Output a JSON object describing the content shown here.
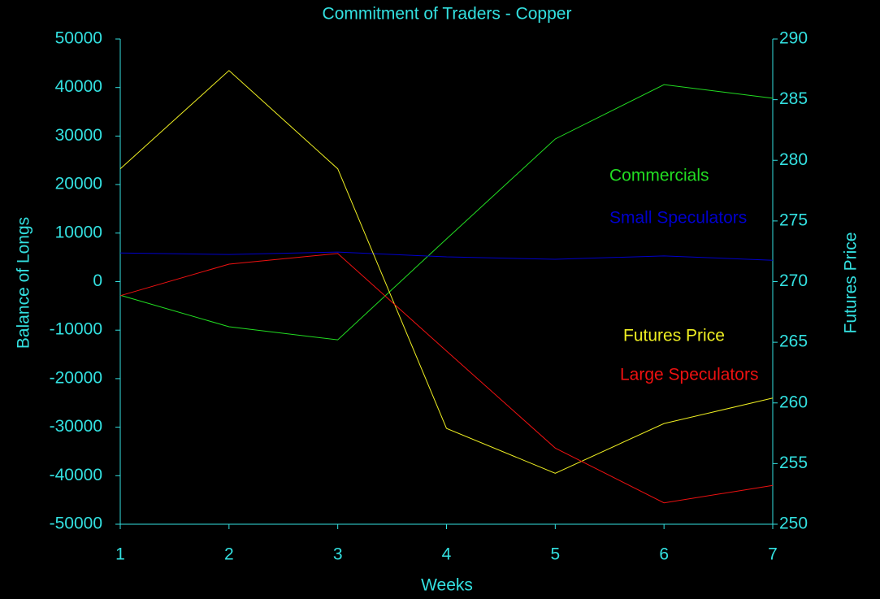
{
  "chart_data": {
    "type": "line",
    "title": "Commitment of Traders - Copper",
    "x_label": "Weeks",
    "y_label": "Balance of Longs",
    "y2_label": "Futures Price",
    "x": [
      1,
      2,
      3,
      4,
      5,
      6,
      7
    ],
    "series": [
      {
        "name": "Commercials",
        "color": "#22dd22",
        "values": [
          -2800,
          -9300,
          -12000,
          8800,
          29400,
          40600,
          37800
        ]
      },
      {
        "name": "Small Speculators",
        "color": "#0000cc",
        "values": [
          5900,
          5600,
          6100,
          5100,
          4600,
          5300,
          4400
        ]
      },
      {
        "name": "Futures Price",
        "color": "#eeee22",
        "axis": "y2",
        "values": [
          279.3,
          287.4,
          279.3,
          257.9,
          254.2,
          258.3,
          260.4
        ]
      },
      {
        "name": "Large Speculators",
        "color": "#ee1111",
        "values": [
          -2900,
          3600,
          5800,
          -14300,
          -34300,
          -45600,
          -42000
        ]
      }
    ],
    "xlim": [
      1,
      7
    ],
    "xticks": [
      1,
      2,
      3,
      4,
      5,
      6,
      7
    ],
    "ylim": [
      -50000,
      50000
    ],
    "yticks": [
      -50000,
      -40000,
      -30000,
      -20000,
      -10000,
      0,
      10000,
      20000,
      30000,
      40000,
      50000
    ],
    "y2lim": [
      250,
      290
    ],
    "y2ticks": [
      250,
      255,
      260,
      265,
      270,
      275,
      280,
      285,
      290
    ]
  }
}
